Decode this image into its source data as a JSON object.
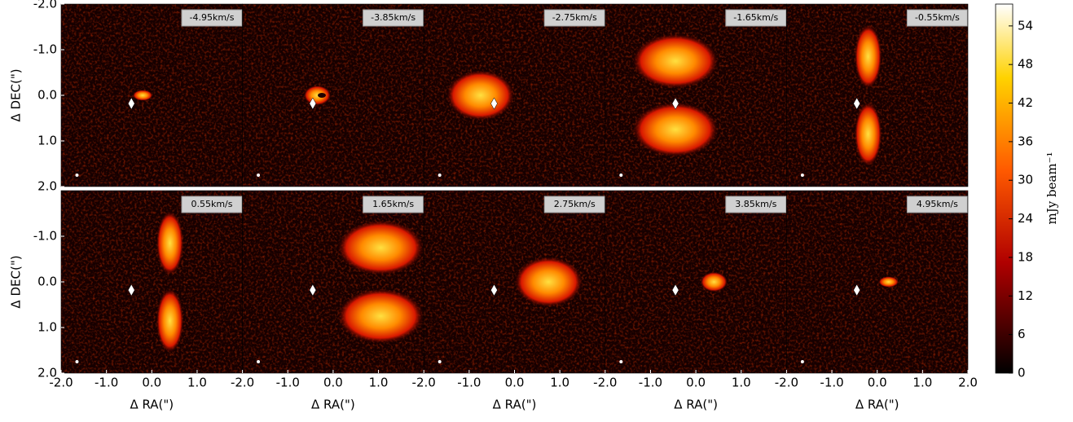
{
  "chart_data": {
    "type": "channel-map",
    "x_label": "Δ RA(\")",
    "y_label": "Δ DEC(\")",
    "panels": [
      "-4.95km/s",
      "-3.85km/s",
      "-2.75km/s",
      "-1.65km/s",
      "-0.55km/s",
      "0.55km/s",
      "1.65km/s",
      "2.75km/s",
      "3.85km/s",
      "4.95km/s"
    ],
    "xlim": [
      -2,
      2
    ],
    "xticks": [
      {
        "value": -2,
        "label": "-2.0"
      },
      {
        "value": -1,
        "label": "-1.0"
      },
      {
        "value": 0,
        "label": "0.0"
      },
      {
        "value": 1,
        "label": "1.0"
      },
      {
        "value": 2,
        "label": "2.0"
      }
    ],
    "ylim": [
      -2,
      2
    ],
    "yticks": [
      {
        "value": -2,
        "label": "-2.0"
      },
      {
        "value": -1,
        "label": "-1.0"
      },
      {
        "value": 0,
        "label": "0.0"
      },
      {
        "value": 1,
        "label": "1.0"
      },
      {
        "value": 2,
        "label": "2.0"
      }
    ],
    "colorbar": {
      "label": "mJy beam⁻¹",
      "lim": [
        0,
        57.4
      ],
      "ticks": [
        0,
        6,
        12,
        18,
        24,
        30,
        36,
        42,
        48,
        54
      ]
    }
  }
}
